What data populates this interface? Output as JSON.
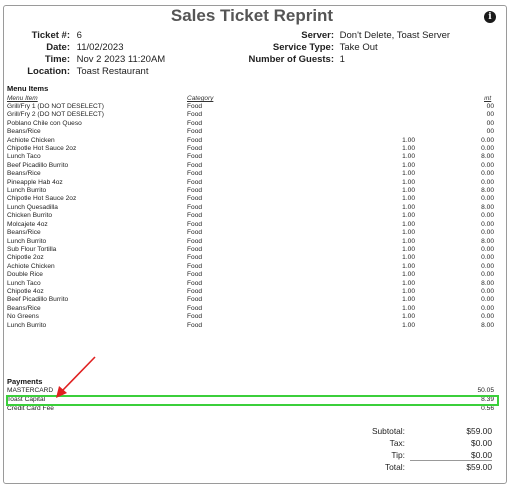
{
  "title": "Sales Ticket Reprint",
  "info_icon": "info-icon",
  "header": {
    "ticket_label": "Ticket #:",
    "ticket_value": "6",
    "date_label": "Date:",
    "date_value": "11/02/2023",
    "time_label": "Time:",
    "time_value": "Nov  2 2023 11:20AM",
    "location_label": "Location:",
    "location_value": "Toast Restaurant",
    "server_label": "Server:",
    "server_value": "Don't Delete,  Toast Server",
    "service_label": "Service Type:",
    "service_value": "Take Out",
    "guests_label": "Number of Guests:",
    "guests_value": "1"
  },
  "menu": {
    "section_label": "Menu Items",
    "col_item": "Menu Item",
    "col_category": "Category",
    "col_amount": "ınt",
    "items": [
      {
        "name": "Grill/Fry 1 (DO NOT DESELECT)",
        "category": "Food",
        "qty": "",
        "amount": "00"
      },
      {
        "name": "Grill/Fry 2 (DO NOT DESELECT)",
        "category": "Food",
        "qty": "",
        "amount": "00"
      },
      {
        "name": "Poblano Chile con Queso",
        "category": "Food",
        "qty": "",
        "amount": "00"
      },
      {
        "name": "Beans/Rice",
        "category": "Food",
        "qty": "",
        "amount": "00"
      },
      {
        "name": "Achiote Chicken",
        "category": "Food",
        "qty": "1.00",
        "amount": "0.00"
      },
      {
        "name": "Chipotle Hot Sauce 2oz",
        "category": "Food",
        "qty": "1.00",
        "amount": "0.00"
      },
      {
        "name": "Lunch Taco",
        "category": "Food",
        "qty": "1.00",
        "amount": "8.00"
      },
      {
        "name": "Beef Picadillo Burrito",
        "category": "Food",
        "qty": "1.00",
        "amount": "0.00"
      },
      {
        "name": "Beans/Rice",
        "category": "Food",
        "qty": "1.00",
        "amount": "0.00"
      },
      {
        "name": "Pineapple Hab 4oz",
        "category": "Food",
        "qty": "1.00",
        "amount": "0.00"
      },
      {
        "name": "Lunch Burrito",
        "category": "Food",
        "qty": "1.00",
        "amount": "8.00"
      },
      {
        "name": "Chipotle Hot Sauce 2oz",
        "category": "Food",
        "qty": "1.00",
        "amount": "0.00"
      },
      {
        "name": "Lunch Quesadilla",
        "category": "Food",
        "qty": "1.00",
        "amount": "8.00"
      },
      {
        "name": "Chicken Burrito",
        "category": "Food",
        "qty": "1.00",
        "amount": "0.00"
      },
      {
        "name": "Molcajete 4oz",
        "category": "Food",
        "qty": "1.00",
        "amount": "0.00"
      },
      {
        "name": "Beans/Rice",
        "category": "Food",
        "qty": "1.00",
        "amount": "0.00"
      },
      {
        "name": "Lunch Burrito",
        "category": "Food",
        "qty": "1.00",
        "amount": "8.00"
      },
      {
        "name": "Sub Flour Tortilla",
        "category": "Food",
        "qty": "1.00",
        "amount": "0.00"
      },
      {
        "name": "Chipotle 2oz",
        "category": "Food",
        "qty": "1.00",
        "amount": "0.00"
      },
      {
        "name": "Achiote Chicken",
        "category": "Food",
        "qty": "1.00",
        "amount": "0.00"
      },
      {
        "name": "Double Rice",
        "category": "Food",
        "qty": "1.00",
        "amount": "0.00"
      },
      {
        "name": "Lunch Taco",
        "category": "Food",
        "qty": "1.00",
        "amount": "8.00"
      },
      {
        "name": "Chipotle 4oz",
        "category": "Food",
        "qty": "1.00",
        "amount": "0.00"
      },
      {
        "name": "Beef Picadillo Burrito",
        "category": "Food",
        "qty": "1.00",
        "amount": "0.00"
      },
      {
        "name": "Beans/Rice",
        "category": "Food",
        "qty": "1.00",
        "amount": "0.00"
      },
      {
        "name": "No Greens",
        "category": "Food",
        "qty": "1.00",
        "amount": "0.00"
      },
      {
        "name": "Lunch Burrito",
        "category": "Food",
        "qty": "1.00",
        "amount": "8.00"
      }
    ]
  },
  "payments": {
    "section_label": "Payments",
    "items": [
      {
        "name": "MASTERCARD",
        "amount": "50.05"
      },
      {
        "name": "Toast Capital",
        "amount": "8.39"
      },
      {
        "name": "Credit Card Fee",
        "amount": "0.56"
      }
    ]
  },
  "totals": {
    "subtotal_label": "Subtotal:",
    "subtotal_value": "$59.00",
    "tax_label": "Tax:",
    "tax_value": "$0.00",
    "tip_label": "Tip:",
    "tip_value": "$0.00",
    "total_label": "Total:",
    "total_value": "$59.00"
  },
  "colors": {
    "highlight": "#3bcf3b",
    "arrow": "#e02020"
  }
}
